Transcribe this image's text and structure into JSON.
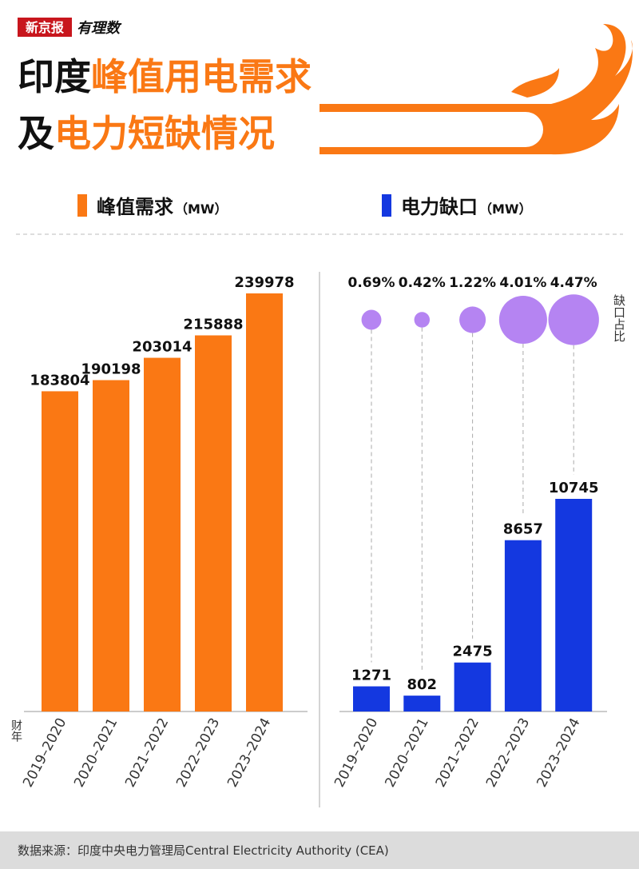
{
  "header": {
    "logo": "新京报",
    "logo_sub": "有理数",
    "title_line1": [
      "印度",
      "峰值用电需求"
    ],
    "title_line2": [
      "及",
      "电力短缺情况"
    ]
  },
  "chart_data": [
    {
      "type": "bar",
      "legend": "峰值需求",
      "unit": "（MW）",
      "x_label": "财年",
      "categories": [
        "2019–2020",
        "2020–2021",
        "2021–2022",
        "2022–2023",
        "2023–2024"
      ],
      "values": [
        183804,
        190198,
        203014,
        215888,
        239978
      ],
      "color": "#fa7814"
    },
    {
      "type": "bar",
      "legend": "电力缺口",
      "unit": "（MW）",
      "categories": [
        "2019–2020",
        "2020–2021",
        "2021–2022",
        "2022–2023",
        "2023–2024"
      ],
      "values": [
        1271,
        802,
        2475,
        8657,
        10745
      ],
      "color": "#1438e0",
      "bubbles": {
        "label": "缺口占比",
        "values": [
          0.69,
          0.42,
          1.22,
          4.01,
          4.47
        ],
        "value_labels": [
          "0.69%",
          "0.42%",
          "1.22%",
          "4.01%",
          "4.47%"
        ],
        "color": "#b584f2"
      }
    }
  ],
  "footer": {
    "source": "数据来源：印度中央电力管理局Central Electricity Authority (CEA)"
  }
}
